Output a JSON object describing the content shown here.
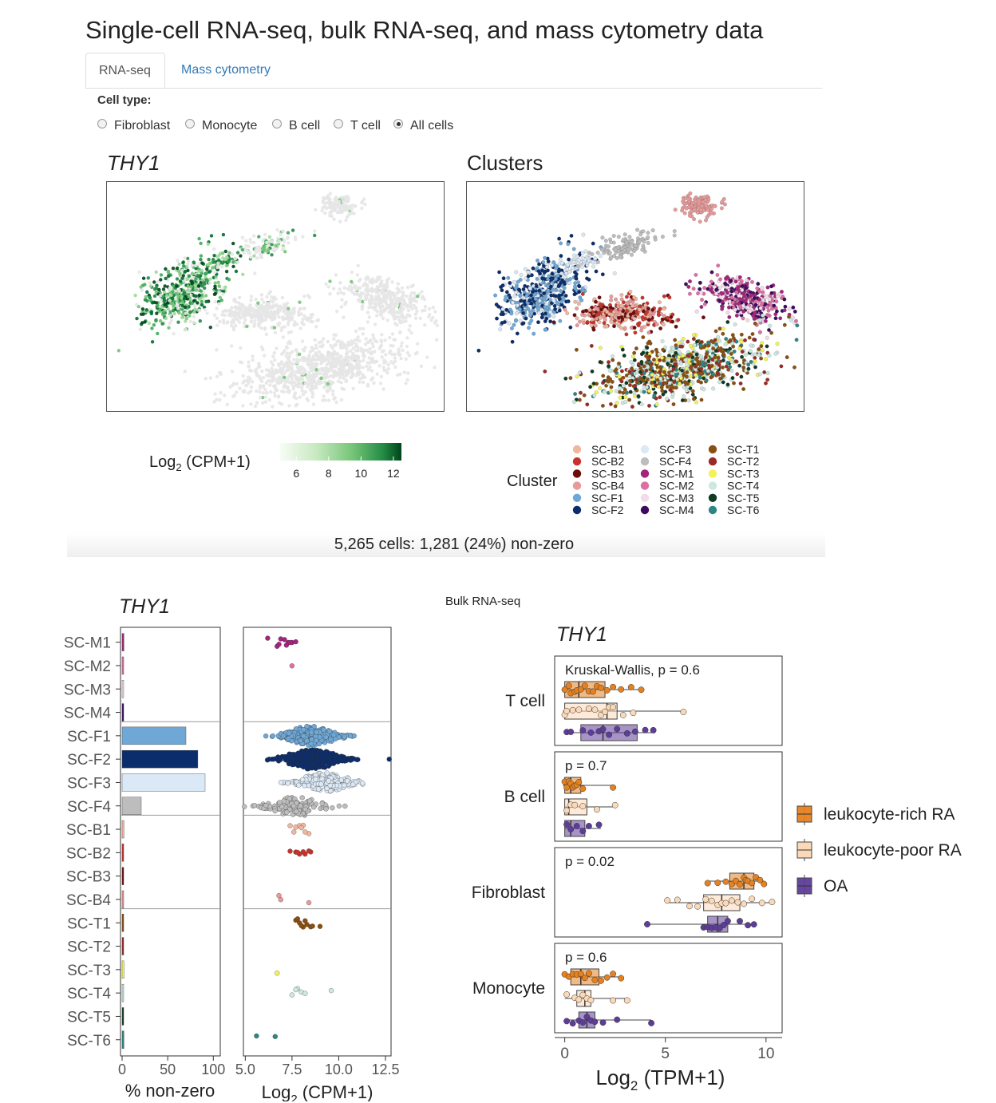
{
  "header": {
    "title": "Single-cell RNA-seq, bulk RNA-seq, and mass cytometry data",
    "tabs": [
      {
        "label": "RNA-seq",
        "active": true
      },
      {
        "label": "Mass cytometry",
        "active": false
      }
    ]
  },
  "cell_type": {
    "label": "Cell type:",
    "options": [
      "Fibroblast",
      "Monocyte",
      "B cell",
      "T cell",
      "All cells"
    ],
    "selected": "All cells"
  },
  "colors": {
    "SC-B1": "#f0b79f",
    "SC-B2": "#c8342b",
    "SC-B3": "#6e0b0b",
    "SC-B4": "#e89a9a",
    "SC-F1": "#6fa8d6",
    "SC-F2": "#0c2d6b",
    "SC-F3": "#dbe8f5",
    "SC-F4": "#bdbdbd",
    "SC-M1": "#a3247d",
    "SC-M2": "#de6fa4",
    "SC-M3": "#f2dcea",
    "SC-M4": "#3d0b5f",
    "SC-T1": "#8a4f10",
    "SC-T2": "#9a2a26",
    "SC-T3": "#f2f25a",
    "SC-T4": "#cce8e0",
    "SC-T5": "#0f3a24",
    "SC-T6": "#2e8585",
    "grey_cell": "#e6e6e6",
    "green_low": "#f2f9ef",
    "green_high": "#00441b",
    "leukocyte_rich": "#e6811f",
    "leukocyte_poor": "#fbd9b8",
    "oa": "#5e3d99"
  },
  "tsne_gene_panel": {
    "title": "THY1"
  },
  "tsne_cluster_panel": {
    "title": "Clusters"
  },
  "expression_legend": {
    "title": "Log",
    "subscript": "2",
    "title_rest": " (CPM+1)",
    "ticks": [
      "6",
      "8",
      "10",
      "12"
    ],
    "range": [
      5,
      12.5
    ]
  },
  "cluster_legend": {
    "title": "Cluster",
    "entries": [
      "SC-B1",
      "SC-B2",
      "SC-B3",
      "SC-B4",
      "SC-F1",
      "SC-F2",
      "SC-F3",
      "SC-F4",
      "SC-M1",
      "SC-M2",
      "SC-M3",
      "SC-M4",
      "SC-T1",
      "SC-T2",
      "SC-T3",
      "SC-T4",
      "SC-T5",
      "SC-T6"
    ]
  },
  "status": {
    "text": "5,265 cells: 1,281 (24%) non-zero"
  },
  "bulk": {
    "label": "Bulk RNA-seq"
  },
  "chart_data": [
    {
      "type": "bar",
      "title": "THY1",
      "xlabel": "% non-zero",
      "categories": [
        "SC-M1",
        "SC-M2",
        "SC-M3",
        "SC-M4",
        "SC-F1",
        "SC-F2",
        "SC-F3",
        "SC-F4",
        "SC-B1",
        "SC-B2",
        "SC-B3",
        "SC-B4",
        "SC-T1",
        "SC-T2",
        "SC-T3",
        "SC-T4",
        "SC-T5",
        "SC-T6"
      ],
      "values": [
        2,
        1,
        0.5,
        0.5,
        70,
        83,
        91,
        21,
        2,
        1.5,
        0.5,
        1.5,
        1.5,
        0.5,
        2,
        1.5,
        0.5,
        2
      ],
      "xlim": [
        0,
        105
      ],
      "xticks": [
        "0",
        "50",
        "100"
      ]
    },
    {
      "type": "scatter",
      "title": "THY1",
      "xlabel": "Log",
      "xlabel_sub": "2",
      "xlabel_rest": " (CPM+1)",
      "xlim": [
        4.9,
        12.8
      ],
      "xticks": [
        "5.0",
        "7.5",
        "10.0",
        "12.5"
      ],
      "groups": [
        {
          "cluster": "SC-M1",
          "values": [
            6.2,
            6.7,
            6.9,
            7.1,
            7.3,
            7.5,
            7.7,
            6.8,
            7.2,
            7.4
          ]
        },
        {
          "cluster": "SC-M2",
          "values": [
            7.5
          ]
        },
        {
          "cluster": "SC-F1",
          "center": 8.5,
          "spread": 3.0,
          "n": 260
        },
        {
          "cluster": "SC-F2",
          "center": 8.6,
          "spread": 3.2,
          "n": 340,
          "outlier": 12.7
        },
        {
          "cluster": "SC-F3",
          "center": 9.3,
          "spread": 3.0,
          "n": 200
        },
        {
          "cluster": "SC-F4",
          "center": 7.7,
          "spread": 3.4,
          "n": 110
        },
        {
          "cluster": "SC-B1",
          "values": [
            7.4,
            7.7,
            7.9,
            8.1,
            8.4,
            7.6,
            8.2,
            8.0
          ]
        },
        {
          "cluster": "SC-B2",
          "values": [
            7.4,
            7.9,
            8.2,
            8.5,
            7.7,
            8.1,
            8.4,
            7.8
          ]
        },
        {
          "cluster": "SC-B4",
          "values": [
            6.8,
            6.9,
            8.4
          ]
        },
        {
          "cluster": "SC-T1",
          "values": [
            7.7,
            7.9,
            8.1,
            8.3,
            8.5,
            9.0,
            7.8,
            8.2,
            8.6,
            8.0
          ]
        },
        {
          "cluster": "SC-T3",
          "values": [
            6.7
          ]
        },
        {
          "cluster": "SC-T4",
          "values": [
            7.5,
            7.8,
            8.0,
            8.2,
            9.6,
            7.7
          ]
        },
        {
          "cluster": "SC-T6",
          "values": [
            5.6,
            6.6
          ]
        }
      ]
    },
    {
      "type": "box",
      "title": "THY1",
      "xlabel": "Log",
      "xlabel_sub": "2",
      "xlabel_rest": " (TPM+1)",
      "xlim": [
        -0.5,
        10.8
      ],
      "xticks": [
        "0",
        "5",
        "10"
      ],
      "legend": [
        "leukocyte-rich RA",
        "leukocyte-poor RA",
        "OA"
      ],
      "facets": [
        {
          "name": "T cell",
          "annotation": "Kruskal-Wallis, p = 0.6",
          "groups": [
            {
              "group": "leukocyte-rich RA",
              "q1": 0.0,
              "median": 0.7,
              "q3": 2.0,
              "wmin": -0.1,
              "wmax": 3.9,
              "points": [
                0,
                0.2,
                0.3,
                0.5,
                0.6,
                0.8,
                1.0,
                1.2,
                1.4,
                1.6,
                1.8,
                2.1,
                2.4,
                2.8,
                3.3,
                3.8
              ]
            },
            {
              "group": "leukocyte-poor RA",
              "q1": 0.0,
              "median": 2.1,
              "q3": 2.6,
              "wmin": -0.1,
              "wmax": 5.9,
              "points": [
                0,
                0.1,
                0.4,
                0.7,
                1.2,
                1.5,
                1.8,
                2.0,
                2.2,
                2.4,
                2.9,
                3.4,
                5.9
              ]
            },
            {
              "group": "OA",
              "q1": 0.8,
              "median": 1.9,
              "q3": 3.6,
              "wmin": 0.0,
              "wmax": 4.5,
              "points": [
                0.1,
                0.3,
                0.9,
                1.3,
                1.7,
                1.9,
                2.2,
                2.6,
                3.1,
                3.5,
                4.0,
                4.4
              ]
            }
          ]
        },
        {
          "name": "B cell",
          "annotation": "p = 0.7",
          "groups": [
            {
              "group": "leukocyte-rich RA",
              "q1": 0.0,
              "median": 0.3,
              "q3": 0.8,
              "wmin": -0.1,
              "wmax": 2.4,
              "points": [
                0,
                0.1,
                0.2,
                0.3,
                0.4,
                0.5,
                0.6,
                0.7,
                0.9,
                2.4
              ]
            },
            {
              "group": "leukocyte-poor RA",
              "q1": 0.0,
              "median": 0.2,
              "q3": 1.1,
              "wmin": 0.0,
              "wmax": 2.5,
              "points": [
                0.1,
                0.3,
                0.5,
                0.9,
                1.6,
                2.5
              ]
            },
            {
              "group": "OA",
              "q1": 0.0,
              "median": 0.3,
              "q3": 1.0,
              "wmin": 0.0,
              "wmax": 1.8,
              "points": [
                0.1,
                0.3,
                0.6,
                0.9,
                1.2,
                1.7
              ]
            }
          ]
        },
        {
          "name": "Fibroblast",
          "annotation": "p = 0.02",
          "groups": [
            {
              "group": "leukocyte-rich RA",
              "q1": 8.2,
              "median": 8.9,
              "q3": 9.4,
              "wmin": 7.1,
              "wmax": 9.9,
              "points": [
                7.1,
                7.6,
                8.0,
                8.3,
                8.5,
                8.7,
                8.9,
                9.0,
                9.1,
                9.3,
                9.5,
                9.7,
                9.9
              ]
            },
            {
              "group": "leukocyte-poor RA",
              "q1": 6.9,
              "median": 7.8,
              "q3": 8.7,
              "wmin": 5.1,
              "wmax": 10.3,
              "points": [
                5.1,
                5.6,
                6.2,
                6.6,
                7.0,
                7.3,
                7.6,
                7.8,
                8.0,
                8.3,
                8.6,
                8.9,
                9.3,
                9.8,
                10.3
              ]
            },
            {
              "group": "OA",
              "q1": 7.1,
              "median": 7.6,
              "q3": 8.1,
              "wmin": 4.1,
              "wmax": 9.4,
              "points": [
                4.1,
                6.9,
                7.1,
                7.3,
                7.5,
                7.7,
                7.9,
                8.1,
                8.7,
                9.1,
                9.4
              ]
            }
          ]
        },
        {
          "name": "Monocyte",
          "annotation": "p = 0.6",
          "groups": [
            {
              "group": "leukocyte-rich RA",
              "q1": 0.3,
              "median": 0.8,
              "q3": 1.7,
              "wmin": 0.0,
              "wmax": 2.9,
              "points": [
                0,
                0.2,
                0.4,
                0.6,
                0.8,
                1.0,
                1.2,
                1.5,
                1.8,
                2.1,
                2.4,
                2.8
              ]
            },
            {
              "group": "leukocyte-poor RA",
              "q1": 0.6,
              "median": 1.0,
              "q3": 1.3,
              "wmin": 0.0,
              "wmax": 3.1,
              "points": [
                0.1,
                0.5,
                0.7,
                0.9,
                1.1,
                1.3,
                2.4,
                3.1
              ]
            },
            {
              "group": "OA",
              "q1": 0.7,
              "median": 1.1,
              "q3": 1.5,
              "wmin": 0.0,
              "wmax": 4.3,
              "points": [
                0.1,
                0.4,
                0.7,
                0.9,
                1.1,
                1.3,
                1.5,
                1.9,
                2.6,
                4.3
              ]
            }
          ]
        }
      ]
    }
  ]
}
